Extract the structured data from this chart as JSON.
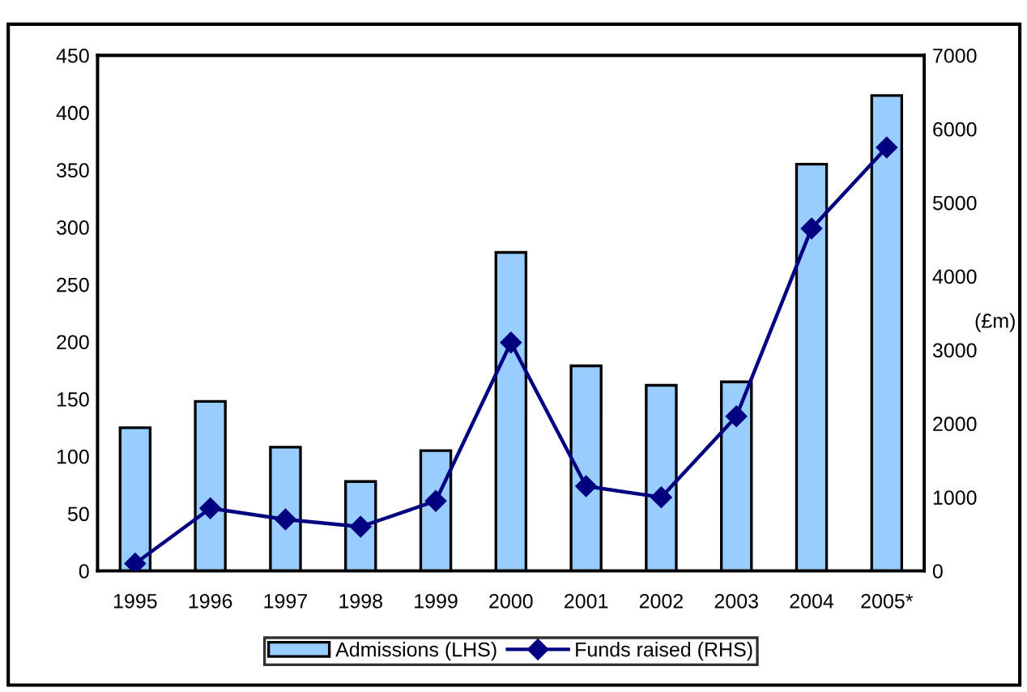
{
  "chart_data": {
    "type": "bar",
    "categories": [
      "1995",
      "1996",
      "1997",
      "1998",
      "1999",
      "2000",
      "2001",
      "2002",
      "2003",
      "2004",
      "2005*"
    ],
    "y2label": "(£m)",
    "series": [
      {
        "name": "Admissions (LHS)",
        "color": "#99ccff",
        "values": [
          125,
          148,
          108,
          78,
          105,
          278,
          179,
          162,
          165,
          355,
          415
        ]
      },
      {
        "name": "Funds raised (RHS)",
        "type": "line",
        "axis": "y2",
        "color": "#000080",
        "marker": "diamond",
        "values": [
          100,
          850,
          700,
          600,
          950,
          3100,
          1150,
          1000,
          2100,
          4650,
          5750
        ]
      }
    ],
    "ylim": [
      0,
      450
    ],
    "yticks": [
      0,
      50,
      100,
      150,
      200,
      250,
      300,
      350,
      400,
      450
    ],
    "y2lim": [
      0,
      7000
    ],
    "y2ticks": [
      0,
      1000,
      2000,
      3000,
      4000,
      5000,
      6000,
      7000
    ],
    "grid": false,
    "legend": "bottom"
  }
}
